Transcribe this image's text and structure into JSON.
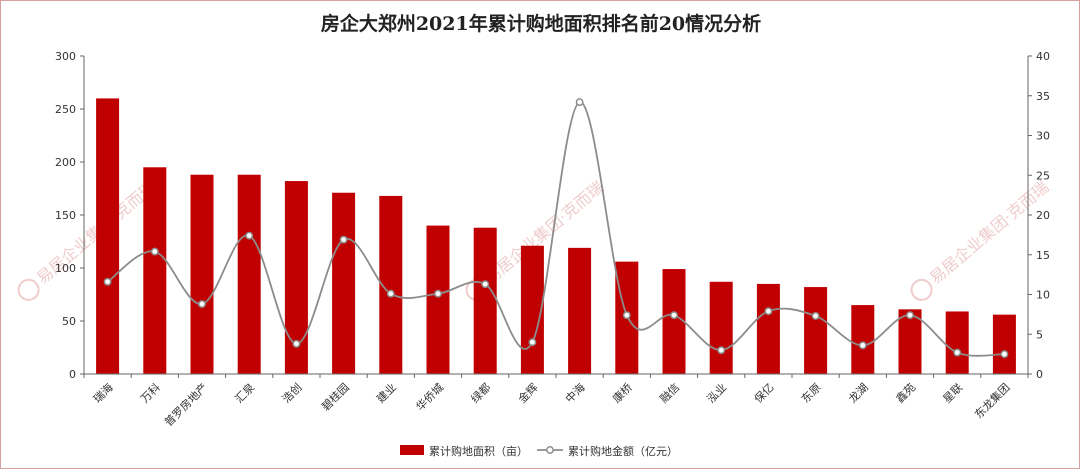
{
  "chart_data": {
    "type": "bar",
    "title": "房企大郑州2021年累计购地面积排名前20情况分析",
    "categories": [
      "瑞海",
      "万科",
      "普罗房地产",
      "汇泉",
      "浩创",
      "碧桂园",
      "建业",
      "华侨城",
      "绿都",
      "金辉",
      "中海",
      "康桥",
      "融信",
      "泓业",
      "保亿",
      "东原",
      "龙湖",
      "鑫苑",
      "星联",
      "东龙集团"
    ],
    "series": [
      {
        "name": "累计购地面积（亩）",
        "type": "bar",
        "axis": "left",
        "color": "#c00000",
        "values": [
          260,
          195,
          188,
          188,
          182,
          171,
          168,
          140,
          138,
          121,
          119,
          106,
          99,
          87,
          85,
          82,
          65,
          61,
          59,
          56
        ]
      },
      {
        "name": "累计购地金额（亿元）",
        "type": "line",
        "axis": "right",
        "color": "#8c8c8c",
        "values": [
          11.6,
          15.4,
          8.8,
          17.4,
          3.8,
          16.9,
          10.1,
          10.1,
          11.3,
          4.0,
          34.2,
          7.4,
          7.4,
          3.0,
          7.9,
          7.3,
          3.6,
          7.4,
          2.7,
          2.5
        ]
      }
    ],
    "y_left": {
      "min": 0,
      "max": 300,
      "ticks": [
        0,
        50,
        100,
        150,
        200,
        250,
        300
      ]
    },
    "y_right": {
      "min": 0,
      "max": 40,
      "ticks": [
        0,
        5,
        10,
        15,
        20,
        25,
        30,
        35,
        40
      ]
    },
    "grid": false,
    "legend_position": "bottom"
  },
  "watermark": {
    "text": "易居企业集团·克而瑞",
    "color": "#e3a3a3"
  }
}
